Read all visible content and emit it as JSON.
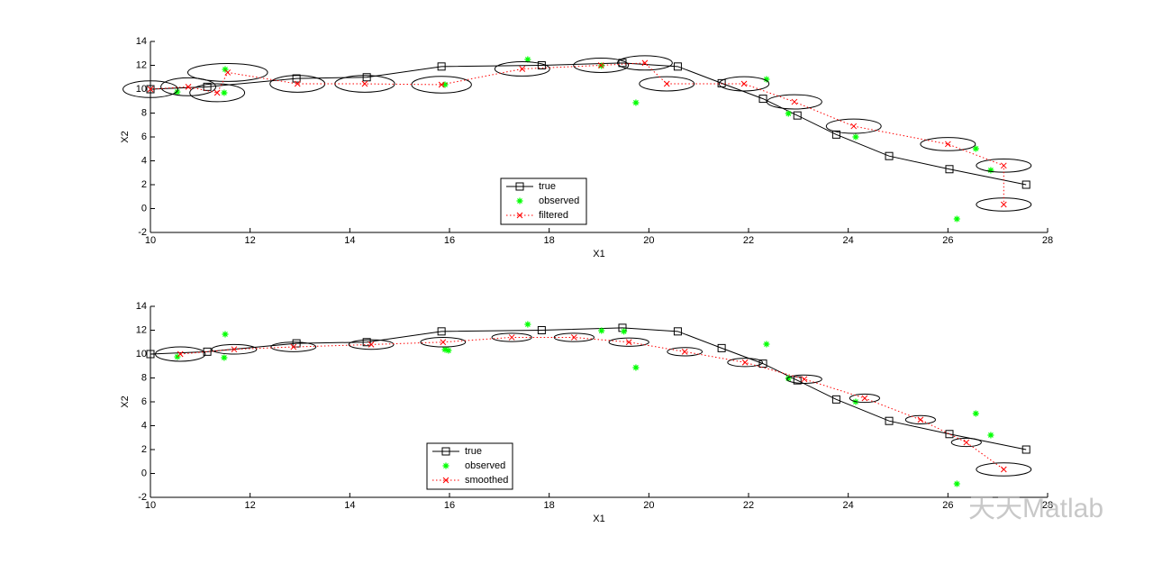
{
  "chart_data": [
    {
      "type": "line",
      "xlabel": "X1",
      "ylabel": "X2",
      "xlim": [
        10,
        28
      ],
      "ylim": [
        -2,
        14
      ],
      "xticks": [
        10,
        12,
        14,
        16,
        18,
        20,
        22,
        24,
        26,
        28
      ],
      "yticks": [
        -2,
        0,
        2,
        4,
        6,
        8,
        10,
        12,
        14
      ],
      "legend_loc": "south",
      "series": [
        {
          "name": "true",
          "color": "#000000",
          "line": "solid",
          "marker": "square",
          "x": [
            10,
            11.14,
            12.93,
            14.34,
            15.84,
            17.85,
            19.47,
            20.58,
            21.46,
            22.29,
            22.98,
            23.76,
            24.82,
            26.03,
            27.57
          ],
          "values": [
            10,
            10.2,
            10.9,
            11,
            11.9,
            12,
            12.2,
            11.9,
            10.5,
            9.2,
            7.8,
            6.2,
            4.4,
            3.3,
            2
          ]
        },
        {
          "name": "observed",
          "color": "#00ff00",
          "line": "none",
          "marker": "star",
          "x": [
            10.54,
            11.5,
            11.48,
            15.91,
            17.57,
            19.05,
            19.74,
            22.36,
            22.8,
            24.15,
            26.18,
            26.56,
            26.86
          ],
          "values": [
            9.77,
            11.66,
            9.7,
            10.38,
            12.49,
            11.96,
            8.87,
            10.83,
            7.96,
            6.0,
            -0.87,
            5.02,
            3.21
          ]
        },
        {
          "name": "filtered",
          "color": "#ff0000",
          "line": "dotted",
          "marker": "x",
          "x": [
            10,
            10.76,
            11.34,
            11.55,
            12.95,
            14.3,
            15.84,
            17.46,
            19.04,
            19.92,
            20.36,
            21.91,
            22.92,
            24.11,
            26.0,
            27.12,
            27.12
          ],
          "values": [
            10,
            10.2,
            9.7,
            11.4,
            10.45,
            10.45,
            10.38,
            11.7,
            12.0,
            12.2,
            10.45,
            10.45,
            8.94,
            6.9,
            5.4,
            3.6,
            0.34
          ],
          "ellipse_rx": [
            0.55,
            0.55,
            0.55,
            0.8,
            0.55,
            0.6,
            0.6,
            0.55,
            0.55,
            0.55,
            0.55,
            0.5,
            0.55,
            0.55,
            0.55,
            0.55,
            0.55
          ],
          "ellipse_ry": [
            0.7,
            0.75,
            0.75,
            0.75,
            0.7,
            0.7,
            0.7,
            0.6,
            0.6,
            0.6,
            0.6,
            0.6,
            0.6,
            0.6,
            0.55,
            0.55,
            0.55
          ]
        }
      ]
    },
    {
      "type": "line",
      "xlabel": "X1",
      "ylabel": "X2",
      "xlim": [
        10,
        28
      ],
      "ylim": [
        -2,
        14
      ],
      "xticks": [
        10,
        12,
        14,
        16,
        18,
        20,
        22,
        24,
        26,
        28
      ],
      "yticks": [
        -2,
        0,
        2,
        4,
        6,
        8,
        10,
        12,
        14
      ],
      "legend_loc": "south",
      "series": [
        {
          "name": "true",
          "color": "#000000",
          "line": "solid",
          "marker": "square",
          "x": [
            10,
            11.14,
            12.93,
            14.34,
            15.84,
            17.85,
            19.47,
            20.58,
            21.46,
            22.29,
            22.98,
            23.76,
            24.82,
            26.03,
            27.57
          ],
          "values": [
            10,
            10.2,
            10.9,
            11,
            11.9,
            12,
            12.2,
            11.9,
            10.5,
            9.2,
            7.8,
            6.2,
            4.4,
            3.3,
            2
          ]
        },
        {
          "name": "observed",
          "color": "#00ff00",
          "line": "none",
          "marker": "star",
          "x": [
            10.54,
            11.5,
            11.48,
            15.91,
            15.98,
            17.57,
            19.05,
            19.5,
            19.74,
            22.36,
            22.8,
            24.15,
            26.18,
            26.56,
            26.86
          ],
          "values": [
            9.77,
            11.66,
            9.7,
            10.38,
            10.3,
            12.49,
            11.96,
            11.9,
            8.87,
            10.83,
            7.96,
            6.0,
            -0.87,
            5.02,
            3.21
          ]
        },
        {
          "name": "smoothed",
          "color": "#ff0000",
          "line": "dotted",
          "marker": "x",
          "x": [
            10.6,
            11.68,
            12.87,
            14.43,
            15.87,
            17.25,
            18.5,
            19.6,
            20.72,
            21.93,
            23.12,
            24.33,
            25.45,
            26.37,
            27.12
          ],
          "values": [
            10.0,
            10.4,
            10.6,
            10.8,
            11.0,
            11.4,
            11.4,
            11.0,
            10.2,
            9.3,
            7.9,
            6.3,
            4.5,
            2.6,
            0.34
          ],
          "ellipse_rx": [
            0.5,
            0.45,
            0.45,
            0.45,
            0.45,
            0.4,
            0.4,
            0.4,
            0.35,
            0.35,
            0.35,
            0.3,
            0.3,
            0.3,
            0.55
          ],
          "ellipse_ry": [
            0.6,
            0.4,
            0.4,
            0.4,
            0.4,
            0.35,
            0.35,
            0.35,
            0.35,
            0.35,
            0.35,
            0.35,
            0.35,
            0.35,
            0.55
          ]
        }
      ]
    }
  ],
  "watermark": "天天Matlab"
}
